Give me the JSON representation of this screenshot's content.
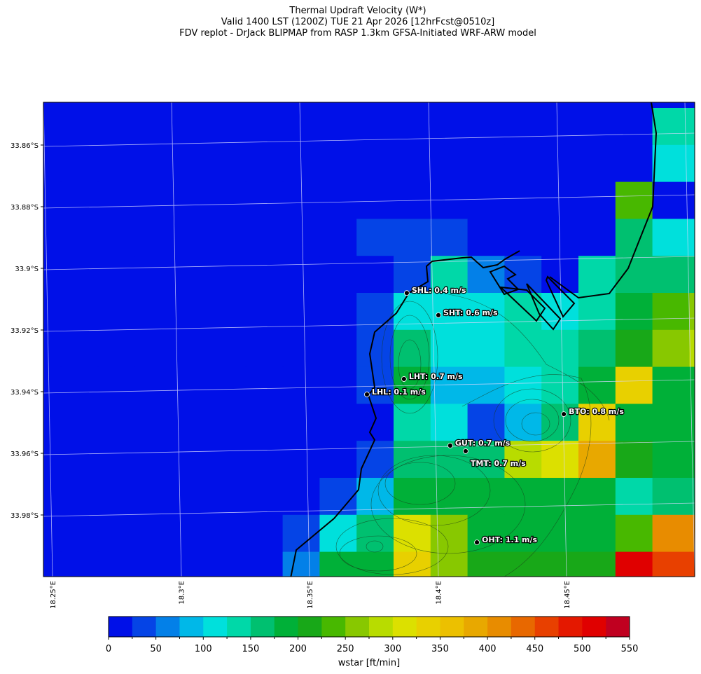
{
  "header": {
    "line1": "Thermal Updraft Velocity (W*)",
    "line2": "Valid 1400 LST (1200Z) TUE 21 Apr 2026 [12hrFcst@0510z]",
    "line3": "FDV replot - DrJack BLIPMAP from RASP 1.3km GFSA-Initiated WRF-ARW model"
  },
  "chart_data": {
    "type": "heatmap",
    "variable": "wstar",
    "lat_ticks": [
      "33.86°S",
      "33.88°S",
      "33.9°S",
      "33.92°S",
      "33.94°S",
      "33.96°S",
      "33.98°S"
    ],
    "lon_ticks": [
      "18.25°E",
      "18.3°E",
      "18.35°E",
      "18.4°E",
      "18.45°E"
    ],
    "colorbar": {
      "label": "wstar [ft/min]",
      "ticks": [
        "0",
        "50",
        "100",
        "150",
        "200",
        "250",
        "300",
        "350",
        "400",
        "450",
        "500",
        "550"
      ],
      "range": [
        0,
        550
      ],
      "step": 25,
      "colors": [
        "#0010e8",
        "#0544e6",
        "#0380e8",
        "#00b8e8",
        "#00e0dc",
        "#00d8a8",
        "#00c070",
        "#00b038",
        "#18a818",
        "#48b800",
        "#88c800",
        "#b8dc00",
        "#dce000",
        "#e8d000",
        "#ecc000",
        "#e8a800",
        "#e88c00",
        "#e86800",
        "#e84000",
        "#e41800",
        "#e00000",
        "#c00020"
      ]
    },
    "grid_bins": [
      [
        0,
        0,
        0,
        0,
        0,
        0,
        0,
        0,
        0,
        0,
        0,
        0,
        0,
        0,
        0,
        0,
        0,
        0,
        0
      ],
      [
        0,
        0,
        0,
        0,
        0,
        0,
        0,
        0,
        0,
        0,
        0,
        0,
        0,
        0,
        0,
        0,
        0,
        5,
        5
      ],
      [
        0,
        0,
        0,
        0,
        0,
        0,
        0,
        0,
        0,
        0,
        0,
        0,
        0,
        0,
        0,
        0,
        0,
        4,
        4
      ],
      [
        0,
        0,
        0,
        0,
        0,
        0,
        0,
        0,
        0,
        0,
        0,
        0,
        0,
        0,
        0,
        0,
        9,
        0,
        0
      ],
      [
        0,
        0,
        0,
        0,
        0,
        0,
        0,
        0,
        0,
        1,
        1,
        1,
        0,
        0,
        0,
        0,
        6,
        4,
        4
      ],
      [
        0,
        0,
        0,
        0,
        0,
        0,
        0,
        0,
        0,
        0,
        1,
        5,
        2,
        1,
        0,
        5,
        6,
        6,
        6
      ],
      [
        0,
        0,
        0,
        0,
        0,
        0,
        0,
        0,
        0,
        1,
        4,
        4,
        4,
        5,
        4,
        5,
        7,
        9,
        10
      ],
      [
        0,
        0,
        0,
        0,
        0,
        0,
        0,
        0,
        0,
        1,
        6,
        4,
        4,
        5,
        5,
        6,
        8,
        10,
        11
      ],
      [
        0,
        0,
        0,
        0,
        0,
        0,
        0,
        0,
        0,
        1,
        7,
        3,
        3,
        4,
        5,
        7,
        13,
        7,
        7
      ],
      [
        0,
        0,
        0,
        0,
        0,
        0,
        0,
        0,
        0,
        0,
        5,
        4,
        1,
        3,
        6,
        13,
        7,
        7,
        7
      ],
      [
        0,
        0,
        0,
        0,
        0,
        0,
        0,
        0,
        0,
        1,
        6,
        6,
        6,
        11,
        12,
        15,
        8,
        7,
        7
      ],
      [
        0,
        0,
        0,
        0,
        0,
        0,
        0,
        0,
        1,
        3,
        7,
        7,
        7,
        7,
        7,
        7,
        5,
        6,
        6
      ],
      [
        0,
        0,
        0,
        0,
        0,
        0,
        0,
        1,
        4,
        6,
        12,
        10,
        7,
        7,
        7,
        7,
        9,
        16,
        16
      ],
      [
        0,
        0,
        0,
        0,
        0,
        0,
        0,
        2,
        7,
        7,
        13,
        10,
        8,
        8,
        8,
        8,
        20,
        18,
        18
      ]
    ],
    "stations": [
      {
        "label": "SHL: 0.4 m/s",
        "lon": 18.3877,
        "lat": 33.908
      },
      {
        "label": "SHT: 0.6 m/s",
        "lon": 18.4,
        "lat": 33.9152
      },
      {
        "label": "LHT: 0.7 m/s",
        "lon": 18.3866,
        "lat": 33.9359
      },
      {
        "label": "LHL: 0.1 m/s",
        "lon": 18.3722,
        "lat": 33.9409
      },
      {
        "label": "BTO: 0.8 m/s",
        "lon": 18.4488,
        "lat": 33.9473
      },
      {
        "label": "GUT: 0.7 m/s",
        "lon": 18.4046,
        "lat": 33.9575
      },
      {
        "label": "TMT: 0.7 m/s",
        "lon": 18.4106,
        "lat": 33.9593
      },
      {
        "label": "OHT: 1.1 m/s",
        "lon": 18.415,
        "lat": 33.9889
      }
    ]
  }
}
